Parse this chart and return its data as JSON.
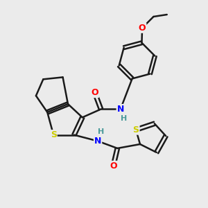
{
  "bg_color": "#ebebeb",
  "line_color": "#1a1a1a",
  "bond_width": 1.8,
  "atom_colors": {
    "O": "#ff0000",
    "N": "#0000ff",
    "S": "#cccc00",
    "H": "#4a9a9a",
    "C": "#1a1a1a"
  },
  "font_size": 8,
  "fig_size": [
    3.0,
    3.0
  ],
  "dpi": 100
}
